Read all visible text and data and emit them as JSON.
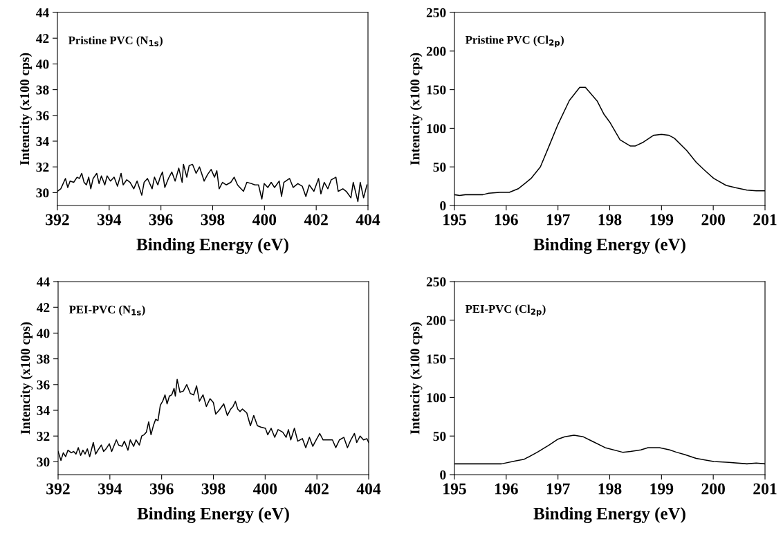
{
  "chart_data": [
    {
      "type": "line",
      "xlabel": "Binding Energy (eV)",
      "ylabel": "Intencity (x100 cps)",
      "annotations": [
        "Pristine PVC (N$_{1s}$)"
      ],
      "xlim": [
        392,
        404
      ],
      "xticks": [
        392,
        394,
        396,
        398,
        400,
        402,
        404
      ],
      "ylim": [
        29,
        44
      ],
      "yticks": [
        30,
        32,
        34,
        36,
        38,
        40,
        42,
        44
      ],
      "series": [
        {
          "color": "#000000",
          "x": [
            392.0,
            392.13,
            392.31,
            392.4,
            392.49,
            392.63,
            392.76,
            392.85,
            392.94,
            393.03,
            393.12,
            393.21,
            393.29,
            393.38,
            393.52,
            393.61,
            393.7,
            393.83,
            393.92,
            394.05,
            394.19,
            394.32,
            394.46,
            394.54,
            394.68,
            394.81,
            394.95,
            395.08,
            395.26,
            395.35,
            395.48,
            395.66,
            395.75,
            395.88,
            395.97,
            396.06,
            396.15,
            396.29,
            396.42,
            396.55,
            396.69,
            396.82,
            396.87,
            397.0,
            397.09,
            397.22,
            397.36,
            397.49,
            397.67,
            397.8,
            397.94,
            398.07,
            398.16,
            398.25,
            398.38,
            398.52,
            398.7,
            398.83,
            398.96,
            399.05,
            399.19,
            399.32,
            399.5,
            399.63,
            399.77,
            399.9,
            399.99,
            400.13,
            400.26,
            400.39,
            400.57,
            400.66,
            400.75,
            400.97,
            401.11,
            401.29,
            401.46,
            401.6,
            401.73,
            401.91,
            402.09,
            402.18,
            402.31,
            402.45,
            402.58,
            402.76,
            402.85,
            403.03,
            403.16,
            403.34,
            403.43,
            403.61,
            403.7,
            403.83,
            403.96
          ],
          "values": [
            30.1,
            30.3,
            31.1,
            30.4,
            30.9,
            30.8,
            31.2,
            31.1,
            31.5,
            30.8,
            30.6,
            31.2,
            30.3,
            31.1,
            31.5,
            30.7,
            31.3,
            30.6,
            31.3,
            30.9,
            31.2,
            30.5,
            31.5,
            30.6,
            31.0,
            30.8,
            30.3,
            30.9,
            29.8,
            30.8,
            31.1,
            30.3,
            31.2,
            30.6,
            31.2,
            31.6,
            30.4,
            31.1,
            31.6,
            30.9,
            31.9,
            30.8,
            32.2,
            31.2,
            32.1,
            32.2,
            31.5,
            32.0,
            30.9,
            31.4,
            31.8,
            31.2,
            31.7,
            30.3,
            30.8,
            30.6,
            30.8,
            31.2,
            30.6,
            30.4,
            30.1,
            30.8,
            30.7,
            30.6,
            30.6,
            29.5,
            30.7,
            30.4,
            30.8,
            30.4,
            30.9,
            29.7,
            30.8,
            31.1,
            30.4,
            30.7,
            30.5,
            29.7,
            30.6,
            30.1,
            31.1,
            29.9,
            30.8,
            30.3,
            31.0,
            31.2,
            30.1,
            30.3,
            30.1,
            29.6,
            30.8,
            29.3,
            30.8,
            29.6,
            30.6
          ]
        }
      ]
    },
    {
      "type": "line",
      "xlabel": "Binding Energy (eV)",
      "ylabel": "Intencity (x100 cps)",
      "annotations": [
        "Pristine PVC (Cl$_{2p}$)"
      ],
      "xlim": [
        195,
        201
      ],
      "xticks": [
        195,
        196,
        197,
        198,
        199,
        200,
        201
      ],
      "ylim": [
        0,
        250
      ],
      "yticks": [
        0,
        50,
        100,
        150,
        200,
        250
      ],
      "series": [
        {
          "color": "#000000",
          "x": [
            195.0,
            195.1,
            195.21,
            195.55,
            195.66,
            195.88,
            196.06,
            196.24,
            196.48,
            196.66,
            196.84,
            197.0,
            197.22,
            197.42,
            197.53,
            197.76,
            197.89,
            198.0,
            198.2,
            198.4,
            198.49,
            198.65,
            198.85,
            199.0,
            199.14,
            199.25,
            199.49,
            199.67,
            199.81,
            200.01,
            200.25,
            200.43,
            200.65,
            200.83,
            201.0
          ],
          "values": [
            14,
            13,
            14,
            14,
            16,
            17,
            17,
            22,
            35,
            50,
            79,
            105,
            136,
            153,
            153,
            135,
            118,
            108,
            85,
            77,
            77,
            82,
            91,
            92,
            91,
            87,
            71,
            56,
            47,
            35,
            26,
            23,
            20,
            19,
            19
          ]
        }
      ]
    },
    {
      "type": "line",
      "xlabel": "Binding Energy (eV)",
      "ylabel": "Intencity (x100 cps)",
      "annotations": [
        "PEI-PVC (N$_{1s}$)"
      ],
      "xlim": [
        392,
        404
      ],
      "xticks": [
        392,
        394,
        396,
        398,
        400,
        402,
        404
      ],
      "ylim": [
        29,
        44
      ],
      "yticks": [
        30,
        32,
        34,
        36,
        38,
        40,
        42,
        44
      ],
      "series": [
        {
          "color": "#000000",
          "x": [
            392.0,
            392.11,
            392.2,
            392.29,
            392.38,
            392.51,
            392.6,
            392.69,
            392.78,
            392.87,
            392.96,
            393.04,
            393.13,
            393.22,
            393.36,
            393.45,
            393.54,
            393.67,
            393.76,
            393.85,
            393.98,
            394.07,
            394.25,
            394.34,
            394.47,
            394.56,
            394.7,
            394.79,
            394.92,
            395.01,
            395.14,
            395.23,
            395.32,
            395.41,
            395.5,
            395.59,
            395.68,
            395.77,
            395.86,
            395.95,
            396.04,
            396.13,
            396.21,
            396.3,
            396.39,
            396.48,
            396.53,
            396.6,
            396.71,
            396.84,
            396.97,
            397.11,
            397.24,
            397.35,
            397.46,
            397.6,
            397.73,
            397.87,
            398.0,
            398.09,
            398.22,
            398.4,
            398.54,
            398.67,
            398.76,
            398.85,
            398.94,
            399.03,
            399.12,
            399.29,
            399.43,
            399.56,
            399.7,
            399.83,
            400.01,
            400.1,
            400.23,
            400.37,
            400.5,
            400.68,
            400.81,
            400.9,
            400.99,
            401.13,
            401.26,
            401.44,
            401.57,
            401.71,
            401.84,
            401.97,
            402.11,
            402.24,
            402.42,
            402.6,
            402.73,
            402.87,
            403.04,
            403.18,
            403.31,
            403.45,
            403.54,
            403.67,
            403.8,
            403.93,
            404.0
          ],
          "values": [
            30.8,
            30.1,
            30.7,
            30.4,
            30.9,
            30.7,
            30.8,
            30.6,
            31.1,
            30.5,
            30.9,
            30.6,
            31.0,
            30.4,
            31.5,
            30.6,
            30.9,
            31.3,
            30.8,
            31.0,
            31.4,
            30.8,
            31.7,
            31.3,
            31.2,
            31.6,
            30.9,
            31.7,
            31.2,
            31.7,
            31.3,
            32.0,
            32.1,
            32.3,
            33.1,
            32.1,
            32.8,
            33.3,
            33.2,
            34.4,
            34.7,
            35.2,
            34.5,
            35.1,
            35.2,
            35.7,
            35.1,
            36.4,
            35.4,
            35.5,
            36.0,
            35.3,
            35.2,
            35.9,
            34.7,
            35.2,
            34.3,
            34.9,
            34.6,
            33.7,
            34.0,
            34.5,
            33.6,
            34.1,
            34.3,
            34.7,
            34.1,
            33.9,
            34.1,
            33.8,
            32.8,
            33.6,
            32.8,
            32.7,
            32.6,
            32.1,
            32.6,
            31.9,
            32.5,
            32.3,
            31.9,
            32.5,
            31.7,
            32.6,
            31.6,
            31.8,
            31.1,
            31.9,
            31.2,
            31.7,
            32.2,
            31.7,
            31.7,
            31.7,
            31.1,
            31.7,
            31.9,
            31.1,
            31.7,
            32.2,
            31.5,
            32.0,
            31.7,
            31.8,
            31.5
          ]
        }
      ]
    },
    {
      "type": "line",
      "xlabel": "Binding Energy (eV)",
      "ylabel": "Intencity (x100 cps)",
      "annotations": [
        "PEI-PVC (Cl$_{2p}$)"
      ],
      "xlim": [
        195,
        201
      ],
      "xticks": [
        195,
        196,
        197,
        198,
        199,
        200,
        201
      ],
      "ylim": [
        0,
        250
      ],
      "yticks": [
        0,
        50,
        100,
        150,
        200,
        250
      ],
      "series": [
        {
          "color": "#000000",
          "x": [
            195.0,
            195.21,
            195.55,
            195.91,
            196.19,
            196.35,
            196.6,
            196.82,
            197.0,
            197.13,
            197.31,
            197.49,
            197.67,
            197.91,
            198.25,
            198.4,
            198.6,
            198.74,
            198.96,
            199.16,
            199.29,
            199.45,
            199.67,
            200.01,
            200.3,
            200.65,
            200.83,
            201.0
          ],
          "values": [
            14,
            14,
            14,
            14,
            18,
            20,
            29,
            38,
            46,
            49,
            51,
            49,
            43,
            35,
            29,
            30,
            32,
            35,
            35,
            32,
            29,
            26,
            21,
            17,
            16,
            14,
            15,
            14
          ]
        }
      ]
    }
  ]
}
